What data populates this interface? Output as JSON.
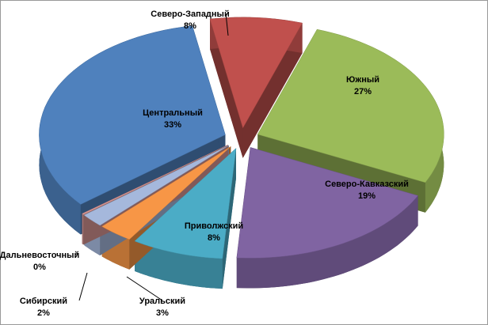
{
  "chart_data": {
    "type": "pie",
    "categories": [
      "Центральный",
      "Северо-Западный",
      "Южный",
      "Северо-Кавказский",
      "Приволжский",
      "Уральский",
      "Сибирский",
      "Дальневосточный"
    ],
    "values": [
      33,
      8,
      27,
      19,
      8,
      3,
      2,
      0
    ],
    "value_labels": [
      "33%",
      "8%",
      "27%",
      "19%",
      "8%",
      "3%",
      "2%",
      "0%"
    ],
    "colors": [
      "#4f81bd",
      "#c0504d",
      "#9bbb59",
      "#8064a2",
      "#4bacc6",
      "#f79646",
      "#a5b8dc",
      "#d99694"
    ]
  }
}
